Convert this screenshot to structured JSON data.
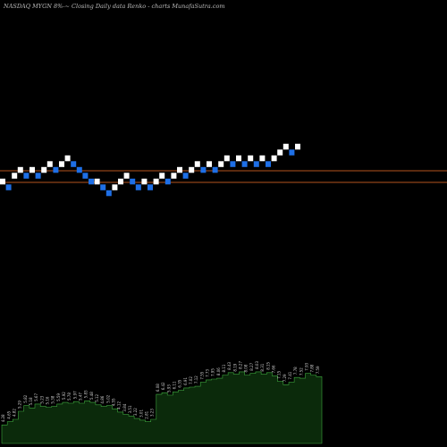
{
  "header": {
    "title": "NASDAQ MYGN  8%-~  Closing Daily data  Renko - charts MunafaSutra.com"
  },
  "colors": {
    "background": "#000000",
    "up_brick": "#ffffff",
    "down_brick": "#1e6fe6",
    "reference_line": "#b5541e",
    "volume_fill": "#0b2a0b",
    "volume_stroke": "#3ea83e",
    "volume_label": "#cccccc"
  },
  "chart_data": [
    {
      "type": "renko",
      "description_note": "",
      "bricks": [
        {
          "dir": "up",
          "level": 0
        },
        {
          "dir": "down",
          "level": -1
        },
        {
          "dir": "up",
          "level": 1
        },
        {
          "dir": "up",
          "level": 2
        },
        {
          "dir": "down",
          "level": 1
        },
        {
          "dir": "up",
          "level": 2
        },
        {
          "dir": "down",
          "level": 1
        },
        {
          "dir": "up",
          "level": 2
        },
        {
          "dir": "up",
          "level": 3
        },
        {
          "dir": "down",
          "level": 2
        },
        {
          "dir": "up",
          "level": 3
        },
        {
          "dir": "up",
          "level": 4
        },
        {
          "dir": "down",
          "level": 3
        },
        {
          "dir": "down",
          "level": 2
        },
        {
          "dir": "down",
          "level": 1
        },
        {
          "dir": "down",
          "level": 0
        },
        {
          "dir": "up",
          "level": 0
        },
        {
          "dir": "down",
          "level": -1
        },
        {
          "dir": "down",
          "level": -2
        },
        {
          "dir": "up",
          "level": -1
        },
        {
          "dir": "up",
          "level": 0
        },
        {
          "dir": "up",
          "level": 1
        },
        {
          "dir": "down",
          "level": 0
        },
        {
          "dir": "down",
          "level": -1
        },
        {
          "dir": "up",
          "level": 0
        },
        {
          "dir": "down",
          "level": -1
        },
        {
          "dir": "up",
          "level": 0
        },
        {
          "dir": "up",
          "level": 1
        },
        {
          "dir": "down",
          "level": 0
        },
        {
          "dir": "up",
          "level": 1
        },
        {
          "dir": "up",
          "level": 2
        },
        {
          "dir": "down",
          "level": 1
        },
        {
          "dir": "up",
          "level": 2
        },
        {
          "dir": "up",
          "level": 3
        },
        {
          "dir": "down",
          "level": 2
        },
        {
          "dir": "up",
          "level": 3
        },
        {
          "dir": "down",
          "level": 2
        },
        {
          "dir": "up",
          "level": 3
        },
        {
          "dir": "up",
          "level": 4
        },
        {
          "dir": "down",
          "level": 3
        },
        {
          "dir": "up",
          "level": 4
        },
        {
          "dir": "down",
          "level": 3
        },
        {
          "dir": "up",
          "level": 4
        },
        {
          "dir": "down",
          "level": 3
        },
        {
          "dir": "up",
          "level": 4
        },
        {
          "dir": "down",
          "level": 3
        },
        {
          "dir": "up",
          "level": 4
        },
        {
          "dir": "up",
          "level": 5
        },
        {
          "dir": "up",
          "level": 6
        },
        {
          "dir": "down",
          "level": 5
        },
        {
          "dir": "up",
          "level": 6
        }
      ],
      "reference_lines": [
        "upper",
        "lower"
      ]
    },
    {
      "type": "area",
      "series": [
        {
          "values": [
            2.3,
            2.7,
            3.0,
            4.0,
            4.7,
            4.4,
            4.9,
            4.6,
            4.5,
            4.6,
            4.9,
            5.1,
            5.0,
            5.2,
            5.0,
            5.3,
            5.1,
            4.8,
            4.6,
            4.7,
            4.3,
            3.9,
            3.6,
            3.4,
            3.1,
            2.9,
            2.7,
            3.0,
            6.1,
            6.3,
            6.0,
            6.4,
            6.6,
            6.9,
            7.0,
            7.1,
            7.6,
            7.9,
            8.0,
            8.1,
            8.5,
            8.8,
            8.6,
            8.9,
            8.5,
            8.7,
            8.9,
            8.6,
            8.8,
            8.4,
            7.7,
            7.3,
            7.6,
            8.2,
            8.1,
            8.7,
            8.5,
            8.3
          ],
          "labels": [
            "4.28",
            "4.65",
            "4.82",
            "5.29",
            "5.82",
            "5.18",
            "5.67",
            "5.23",
            "5.16",
            "5.38",
            "5.59",
            "5.92",
            "5.78",
            "5.97",
            "5.47",
            "5.83",
            "5.48",
            "5.12",
            "4.86",
            "5.02",
            "4.55",
            "4.12",
            "3.84",
            "3.51",
            "3.22",
            "3.01",
            "2.81",
            "3.23",
            "6.08",
            "6.42",
            "5.93",
            "6.11",
            "6.35",
            "6.91",
            "7.02",
            "7.12",
            "7.55",
            "7.73",
            "7.95",
            "8.06",
            "8.11",
            "8.43",
            "8.19",
            "8.27",
            "8.08",
            "8.27",
            "8.03",
            "8.31",
            "8.15",
            "7.66",
            "7.15",
            "7.29",
            "7.41",
            "7.78",
            "7.52",
            "7.93",
            "7.88",
            "7.59"
          ]
        }
      ]
    }
  ]
}
